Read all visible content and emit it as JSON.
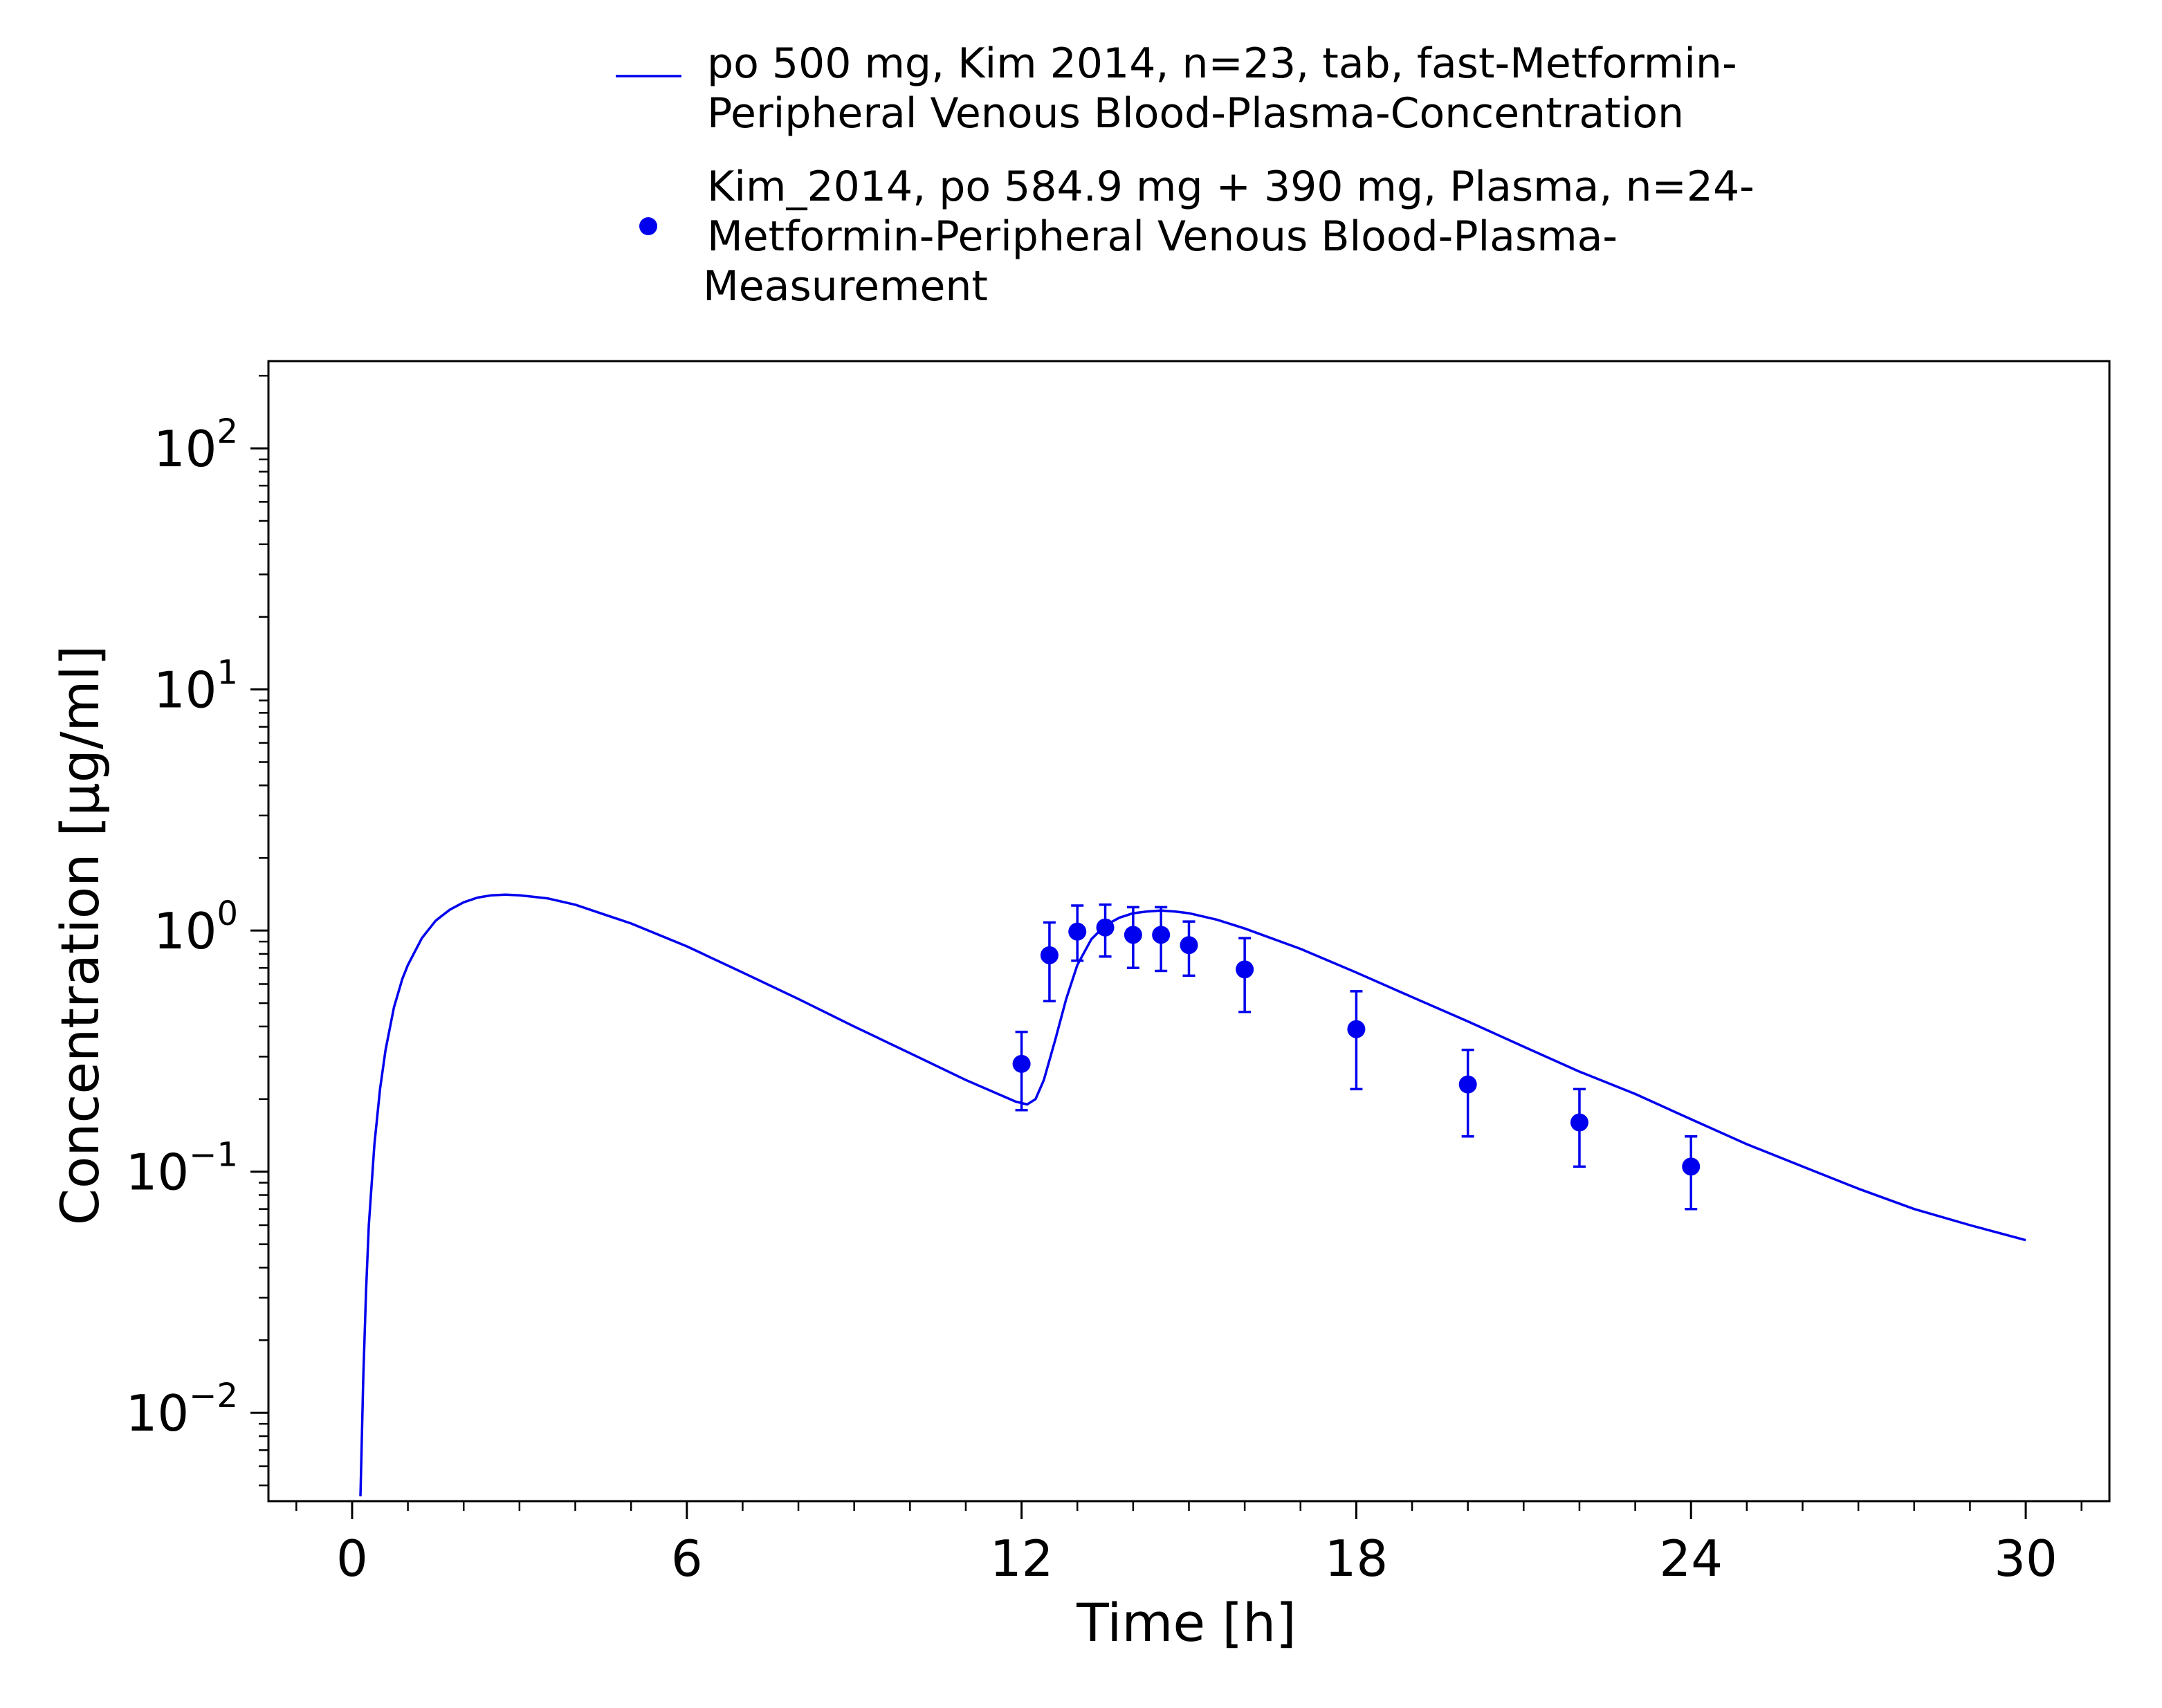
{
  "chart_data": {
    "type": "line",
    "xlabel": "Time [h]",
    "ylabel": "Concentration [µg/ml]",
    "x_scale": "linear",
    "y_scale": "log",
    "xlim": [
      -1.5,
      31.5
    ],
    "ylim": [
      0.0043,
      230
    ],
    "x_ticks": [
      "0",
      "6",
      "12",
      "18",
      "24",
      "30"
    ],
    "x_tick_values": [
      0,
      6,
      12,
      18,
      24,
      30
    ],
    "y_ticks": [
      {
        "base": "10",
        "exp": "−2",
        "value": 0.01
      },
      {
        "base": "10",
        "exp": "−1",
        "value": 0.1
      },
      {
        "base": "10",
        "exp": "0",
        "value": 1
      },
      {
        "base": "10",
        "exp": "1",
        "value": 10
      },
      {
        "base": "10",
        "exp": "2",
        "value": 100
      }
    ],
    "grid": false,
    "legend_position": "top",
    "colors": {
      "series": "#0000ee",
      "axes": "#000000"
    },
    "series": [
      {
        "name": "po 500 mg, Kim 2014, n=23, tab, fast-Metformin-Peripheral Venous Blood-Plasma-Concentration",
        "legend_lines": [
          "po 500 mg, Kim 2014, n=23, tab, fast-Metformin-",
          "Peripheral Venous Blood-Plasma-Concentration"
        ],
        "type": "line",
        "x": [
          0.15,
          0.2,
          0.25,
          0.3,
          0.4,
          0.5,
          0.6,
          0.75,
          0.9,
          1.0,
          1.25,
          1.5,
          1.75,
          2.0,
          2.25,
          2.5,
          2.75,
          3.0,
          3.5,
          4.0,
          5.0,
          6.0,
          7.0,
          8.0,
          9.0,
          10.0,
          11.0,
          11.9,
          12.1,
          12.25,
          12.4,
          12.6,
          12.8,
          13.0,
          13.25,
          13.5,
          13.75,
          14.0,
          14.25,
          14.5,
          14.75,
          15.0,
          15.5,
          16.0,
          17.0,
          18.0,
          19.0,
          20.0,
          21.0,
          22.0,
          23.0,
          24.0,
          25.0,
          26.0,
          27.0,
          28.0,
          29.0,
          30.0
        ],
        "y": [
          0.0045,
          0.014,
          0.032,
          0.06,
          0.13,
          0.22,
          0.32,
          0.48,
          0.63,
          0.72,
          0.93,
          1.1,
          1.22,
          1.31,
          1.37,
          1.4,
          1.41,
          1.4,
          1.36,
          1.28,
          1.07,
          0.86,
          0.67,
          0.52,
          0.4,
          0.31,
          0.24,
          0.195,
          0.19,
          0.2,
          0.24,
          0.35,
          0.52,
          0.72,
          0.92,
          1.05,
          1.13,
          1.18,
          1.2,
          1.21,
          1.2,
          1.18,
          1.11,
          1.02,
          0.84,
          0.67,
          0.53,
          0.42,
          0.33,
          0.26,
          0.21,
          0.165,
          0.13,
          0.105,
          0.085,
          0.07,
          0.06,
          0.052
        ]
      },
      {
        "name": "Kim_2014, po 584.9 mg + 390 mg, Plasma, n=24-Metformin-Peripheral Venous Blood-Plasma-Measurement",
        "legend_lines": [
          "Kim_2014, po 584.9 mg + 390 mg, Plasma, n=24-",
          "Metformin-Peripheral Venous Blood-Plasma-",
          "Measurement"
        ],
        "type": "scatter",
        "x": [
          12.0,
          12.5,
          13.0,
          13.5,
          14.0,
          14.5,
          15.0,
          16.0,
          18.0,
          20.0,
          22.0,
          24.0
        ],
        "y": [
          0.28,
          0.79,
          0.99,
          1.03,
          0.96,
          0.96,
          0.87,
          0.69,
          0.39,
          0.23,
          0.16,
          0.105
        ],
        "y_low": [
          0.18,
          0.51,
          0.75,
          0.78,
          0.7,
          0.68,
          0.65,
          0.46,
          0.22,
          0.14,
          0.105,
          0.07
        ],
        "y_high": [
          0.38,
          1.08,
          1.27,
          1.28,
          1.25,
          1.25,
          1.09,
          0.93,
          0.56,
          0.32,
          0.22,
          0.14
        ]
      }
    ]
  }
}
